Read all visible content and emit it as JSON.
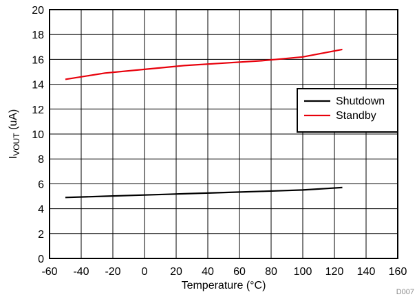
{
  "chart_data": {
    "type": "line",
    "xlabel": "Temperature (°C)",
    "ylabel": {
      "main": "I",
      "subscript": "VOUT",
      "suffix": " (uA)"
    },
    "xlim": [
      -60,
      160
    ],
    "ylim": [
      0,
      20
    ],
    "x_ticks": [
      -60,
      -40,
      -20,
      0,
      20,
      40,
      60,
      80,
      100,
      120,
      140,
      160
    ],
    "y_ticks": [
      0,
      2,
      4,
      6,
      8,
      10,
      12,
      14,
      16,
      18,
      20
    ],
    "grid": true,
    "legend_position": "right",
    "figure_id": "D007",
    "series": [
      {
        "name": "Shutdown",
        "color": "#000000",
        "x": [
          -50,
          -25,
          0,
          25,
          50,
          75,
          100,
          125
        ],
        "y": [
          4.9,
          5.0,
          5.1,
          5.2,
          5.3,
          5.4,
          5.5,
          5.7
        ]
      },
      {
        "name": "Standby",
        "color": "#e8000b",
        "x": [
          -50,
          -25,
          0,
          25,
          50,
          75,
          100,
          125
        ],
        "y": [
          14.4,
          14.9,
          15.2,
          15.5,
          15.7,
          15.9,
          16.2,
          16.8
        ]
      }
    ]
  }
}
